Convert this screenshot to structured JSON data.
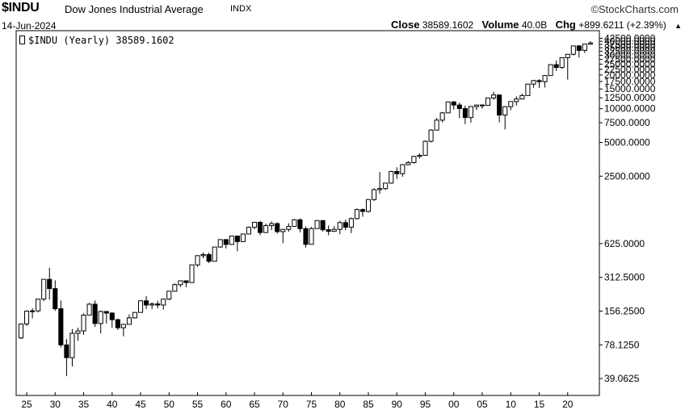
{
  "header": {
    "ticker": "$INDU",
    "full_name": "Dow Jones Industrial Average",
    "exchange": "INDX",
    "brand": "©StockCharts.com",
    "date": "14-Jun-2024",
    "close_label": "Close",
    "close_value": "38589.1602",
    "volume_label": "Volume",
    "volume_value": "40.0B",
    "chg_label": "Chg",
    "chg_value": "+899.6211 (+2.39%)",
    "up_arrow": "▲"
  },
  "legend": {
    "label": "$INDU (Yearly) 38589.1602"
  },
  "chart_data": {
    "type": "candlestick",
    "scale": "log",
    "ylim": [
      30,
      45000
    ],
    "xlim": [
      1924,
      2025
    ],
    "y_tick_labels": [
      "39.0625",
      "78.1250",
      "156.2500",
      "312.5000",
      "625.0000",
      "2500.0000",
      "5000.0000",
      "7500.0000",
      "10000.0000",
      "12500.0000",
      "15000.0000",
      "17500.0000",
      "20000.0000",
      "22500.0000",
      "25000.0000",
      "27500.0000",
      "30000.0000",
      "32500.0000",
      "35000.0000",
      "37500.0000",
      "40000.0000",
      "42500.0000"
    ],
    "y_tick_values": [
      39.0625,
      78.125,
      156.25,
      312.5,
      625,
      2500,
      5000,
      7500,
      10000,
      12500,
      15000,
      17500,
      20000,
      22500,
      25000,
      27500,
      30000,
      32500,
      35000,
      37500,
      40000,
      42500
    ],
    "x_tick_labels": [
      "25",
      "30",
      "35",
      "40",
      "45",
      "50",
      "55",
      "60",
      "65",
      "70",
      "75",
      "80",
      "85",
      "90",
      "95",
      "00",
      "05",
      "10",
      "15",
      "20"
    ],
    "x_tick_values": [
      1925,
      1930,
      1935,
      1940,
      1945,
      1950,
      1955,
      1960,
      1965,
      1970,
      1975,
      1980,
      1985,
      1990,
      1995,
      2000,
      2005,
      2010,
      2015,
      2020
    ],
    "candles": [
      {
        "year": 1924,
        "o": 90,
        "h": 121,
        "l": 88,
        "c": 120
      },
      {
        "year": 1925,
        "o": 120,
        "h": 159,
        "l": 115,
        "c": 156
      },
      {
        "year": 1926,
        "o": 156,
        "h": 166,
        "l": 135,
        "c": 157
      },
      {
        "year": 1927,
        "o": 157,
        "h": 200,
        "l": 152,
        "c": 200
      },
      {
        "year": 1928,
        "o": 200,
        "h": 300,
        "l": 191,
        "c": 300
      },
      {
        "year": 1929,
        "o": 300,
        "h": 381,
        "l": 198,
        "c": 248
      },
      {
        "year": 1930,
        "o": 248,
        "h": 294,
        "l": 157,
        "c": 164
      },
      {
        "year": 1931,
        "o": 164,
        "h": 194,
        "l": 74,
        "c": 78
      },
      {
        "year": 1932,
        "o": 78,
        "h": 88,
        "l": 41,
        "c": 60
      },
      {
        "year": 1933,
        "o": 60,
        "h": 108,
        "l": 50,
        "c": 99
      },
      {
        "year": 1934,
        "o": 99,
        "h": 111,
        "l": 85,
        "c": 104
      },
      {
        "year": 1935,
        "o": 104,
        "h": 149,
        "l": 96,
        "c": 144
      },
      {
        "year": 1936,
        "o": 144,
        "h": 185,
        "l": 143,
        "c": 180
      },
      {
        "year": 1937,
        "o": 180,
        "h": 194,
        "l": 113,
        "c": 121
      },
      {
        "year": 1938,
        "o": 121,
        "h": 158,
        "l": 99,
        "c": 155
      },
      {
        "year": 1939,
        "o": 155,
        "h": 156,
        "l": 121,
        "c": 150
      },
      {
        "year": 1940,
        "o": 150,
        "h": 153,
        "l": 111,
        "c": 131
      },
      {
        "year": 1941,
        "o": 131,
        "h": 134,
        "l": 106,
        "c": 111
      },
      {
        "year": 1942,
        "o": 111,
        "h": 120,
        "l": 93,
        "c": 119
      },
      {
        "year": 1943,
        "o": 119,
        "h": 146,
        "l": 119,
        "c": 136
      },
      {
        "year": 1944,
        "o": 136,
        "h": 153,
        "l": 134,
        "c": 152
      },
      {
        "year": 1945,
        "o": 152,
        "h": 196,
        "l": 151,
        "c": 193
      },
      {
        "year": 1946,
        "o": 193,
        "h": 213,
        "l": 163,
        "c": 177
      },
      {
        "year": 1947,
        "o": 177,
        "h": 187,
        "l": 163,
        "c": 181
      },
      {
        "year": 1948,
        "o": 181,
        "h": 193,
        "l": 165,
        "c": 177
      },
      {
        "year": 1949,
        "o": 177,
        "h": 200,
        "l": 161,
        "c": 200
      },
      {
        "year": 1950,
        "o": 200,
        "h": 236,
        "l": 196,
        "c": 235
      },
      {
        "year": 1951,
        "o": 235,
        "h": 276,
        "l": 239,
        "c": 269
      },
      {
        "year": 1952,
        "o": 269,
        "h": 292,
        "l": 256,
        "c": 291
      },
      {
        "year": 1953,
        "o": 291,
        "h": 293,
        "l": 255,
        "c": 281
      },
      {
        "year": 1954,
        "o": 281,
        "h": 404,
        "l": 279,
        "c": 404
      },
      {
        "year": 1955,
        "o": 404,
        "h": 488,
        "l": 388,
        "c": 488
      },
      {
        "year": 1956,
        "o": 488,
        "h": 521,
        "l": 462,
        "c": 499
      },
      {
        "year": 1957,
        "o": 499,
        "h": 520,
        "l": 419,
        "c": 435
      },
      {
        "year": 1958,
        "o": 435,
        "h": 583,
        "l": 436,
        "c": 583
      },
      {
        "year": 1959,
        "o": 583,
        "h": 679,
        "l": 574,
        "c": 679
      },
      {
        "year": 1960,
        "o": 679,
        "h": 685,
        "l": 566,
        "c": 615
      },
      {
        "year": 1961,
        "o": 615,
        "h": 734,
        "l": 610,
        "c": 731
      },
      {
        "year": 1962,
        "o": 731,
        "h": 726,
        "l": 535,
        "c": 652
      },
      {
        "year": 1963,
        "o": 652,
        "h": 767,
        "l": 646,
        "c": 762
      },
      {
        "year": 1964,
        "o": 762,
        "h": 891,
        "l": 766,
        "c": 874
      },
      {
        "year": 1965,
        "o": 874,
        "h": 969,
        "l": 840,
        "c": 969
      },
      {
        "year": 1966,
        "o": 969,
        "h": 995,
        "l": 744,
        "c": 785
      },
      {
        "year": 1967,
        "o": 785,
        "h": 943,
        "l": 786,
        "c": 905
      },
      {
        "year": 1968,
        "o": 905,
        "h": 985,
        "l": 825,
        "c": 943
      },
      {
        "year": 1969,
        "o": 943,
        "h": 968,
        "l": 769,
        "c": 800
      },
      {
        "year": 1970,
        "o": 800,
        "h": 842,
        "l": 631,
        "c": 838
      },
      {
        "year": 1971,
        "o": 838,
        "h": 950,
        "l": 797,
        "c": 890
      },
      {
        "year": 1972,
        "o": 890,
        "h": 1036,
        "l": 889,
        "c": 1020
      },
      {
        "year": 1973,
        "o": 1020,
        "h": 1051,
        "l": 788,
        "c": 850
      },
      {
        "year": 1974,
        "o": 850,
        "h": 891,
        "l": 577,
        "c": 616
      },
      {
        "year": 1975,
        "o": 616,
        "h": 881,
        "l": 632,
        "c": 852
      },
      {
        "year": 1976,
        "o": 852,
        "h": 1014,
        "l": 858,
        "c": 1004
      },
      {
        "year": 1977,
        "o": 1004,
        "h": 999,
        "l": 800,
        "c": 831
      },
      {
        "year": 1978,
        "o": 831,
        "h": 907,
        "l": 742,
        "c": 805
      },
      {
        "year": 1979,
        "o": 805,
        "h": 897,
        "l": 796,
        "c": 838
      },
      {
        "year": 1980,
        "o": 838,
        "h": 1000,
        "l": 759,
        "c": 963
      },
      {
        "year": 1981,
        "o": 963,
        "h": 1024,
        "l": 824,
        "c": 875
      },
      {
        "year": 1982,
        "o": 875,
        "h": 1070,
        "l": 776,
        "c": 1046
      },
      {
        "year": 1983,
        "o": 1046,
        "h": 1287,
        "l": 1027,
        "c": 1258
      },
      {
        "year": 1984,
        "o": 1258,
        "h": 1286,
        "l": 1086,
        "c": 1211
      },
      {
        "year": 1985,
        "o": 1211,
        "h": 1553,
        "l": 1184,
        "c": 1546
      },
      {
        "year": 1986,
        "o": 1546,
        "h": 1955,
        "l": 1502,
        "c": 1895
      },
      {
        "year": 1987,
        "o": 1895,
        "h": 2722,
        "l": 1738,
        "c": 1938
      },
      {
        "year": 1988,
        "o": 1938,
        "h": 2183,
        "l": 1879,
        "c": 2168
      },
      {
        "year": 1989,
        "o": 2168,
        "h": 2791,
        "l": 2144,
        "c": 2753
      },
      {
        "year": 1990,
        "o": 2753,
        "h": 2999,
        "l": 2365,
        "c": 2633
      },
      {
        "year": 1991,
        "o": 2633,
        "h": 3168,
        "l": 2470,
        "c": 3168
      },
      {
        "year": 1992,
        "o": 3168,
        "h": 3413,
        "l": 3136,
        "c": 3301
      },
      {
        "year": 1993,
        "o": 3301,
        "h": 3794,
        "l": 3242,
        "c": 3754
      },
      {
        "year": 1994,
        "o": 3754,
        "h": 3978,
        "l": 3593,
        "c": 3834
      },
      {
        "year": 1995,
        "o": 3834,
        "h": 5216,
        "l": 3832,
        "c": 5117
      },
      {
        "year": 1996,
        "o": 5117,
        "h": 6560,
        "l": 5000,
        "c": 6448
      },
      {
        "year": 1997,
        "o": 6448,
        "h": 8259,
        "l": 6391,
        "c": 7908
      },
      {
        "year": 1998,
        "o": 7908,
        "h": 9374,
        "l": 7539,
        "c": 9181
      },
      {
        "year": 1999,
        "o": 9181,
        "h": 11497,
        "l": 9120,
        "c": 11497
      },
      {
        "year": 2000,
        "o": 11497,
        "h": 11722,
        "l": 9796,
        "c": 10787
      },
      {
        "year": 2001,
        "o": 10787,
        "h": 11337,
        "l": 8236,
        "c": 10021
      },
      {
        "year": 2002,
        "o": 10021,
        "h": 10635,
        "l": 7286,
        "c": 8342
      },
      {
        "year": 2003,
        "o": 8342,
        "h": 10454,
        "l": 7524,
        "c": 10454
      },
      {
        "year": 2004,
        "o": 10454,
        "h": 10854,
        "l": 9749,
        "c": 10783
      },
      {
        "year": 2005,
        "o": 10783,
        "h": 10940,
        "l": 10012,
        "c": 10718
      },
      {
        "year": 2006,
        "o": 10718,
        "h": 12510,
        "l": 10667,
        "c": 12463
      },
      {
        "year": 2007,
        "o": 12463,
        "h": 14198,
        "l": 12050,
        "c": 13264
      },
      {
        "year": 2008,
        "o": 13264,
        "h": 13279,
        "l": 7552,
        "c": 8776
      },
      {
        "year": 2009,
        "o": 8776,
        "h": 10548,
        "l": 6547,
        "c": 10428
      },
      {
        "year": 2010,
        "o": 10428,
        "h": 11625,
        "l": 9686,
        "c": 11578
      },
      {
        "year": 2011,
        "o": 11578,
        "h": 12876,
        "l": 10655,
        "c": 12218
      },
      {
        "year": 2012,
        "o": 12218,
        "h": 13610,
        "l": 12101,
        "c": 13104
      },
      {
        "year": 2013,
        "o": 13104,
        "h": 16588,
        "l": 13105,
        "c": 16577
      },
      {
        "year": 2014,
        "o": 16577,
        "h": 18103,
        "l": 15373,
        "c": 17823
      },
      {
        "year": 2015,
        "o": 17823,
        "h": 18312,
        "l": 15370,
        "c": 17425
      },
      {
        "year": 2016,
        "o": 17425,
        "h": 19987,
        "l": 15451,
        "c": 19763
      },
      {
        "year": 2017,
        "o": 19763,
        "h": 24876,
        "l": 19677,
        "c": 24719
      },
      {
        "year": 2018,
        "o": 24719,
        "h": 26951,
        "l": 21713,
        "c": 23327
      },
      {
        "year": 2019,
        "o": 23327,
        "h": 28701,
        "l": 22639,
        "c": 28538
      },
      {
        "year": 2020,
        "o": 28538,
        "h": 30606,
        "l": 18214,
        "c": 30606
      },
      {
        "year": 2021,
        "o": 30606,
        "h": 36565,
        "l": 29856,
        "c": 36338
      },
      {
        "year": 2022,
        "o": 36338,
        "h": 36952,
        "l": 28661,
        "c": 33147
      },
      {
        "year": 2023,
        "o": 33147,
        "h": 37778,
        "l": 31430,
        "c": 37690
      },
      {
        "year": 2024,
        "o": 37690,
        "h": 40077,
        "l": 37122,
        "c": 38589
      }
    ]
  }
}
